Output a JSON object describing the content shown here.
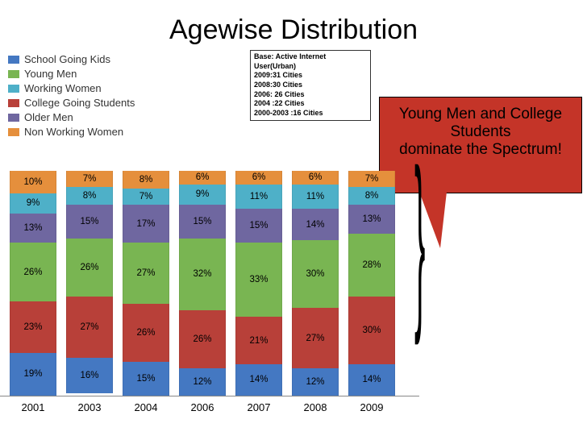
{
  "title": "Agewise Distribution",
  "legend": [
    {
      "label": "School Going Kids",
      "color": "#4478c2"
    },
    {
      "label": "Young Men",
      "color": "#79b552"
    },
    {
      "label": "Working Women",
      "color": "#4eb0c8"
    },
    {
      "label": "College Going Students",
      "color": "#b84039"
    },
    {
      "label": "Older Men",
      "color": "#6f67a0"
    },
    {
      "label": "Non Working Women",
      "color": "#e58f3c"
    }
  ],
  "base_box": [
    "Base: Active Internet User(Urban)",
    "2009:31 Cities",
    "2008:30 Cities",
    "2006: 26 Cities",
    "2004 :22 Cities",
    "2000-2003 :16 Cities"
  ],
  "callout": {
    "line1": "Young Men and College",
    "line2": "Students",
    "line3": "dominate the Spectrum!",
    "bg_color": "#c43428",
    "text_color": "#000000"
  },
  "chart": {
    "type": "stacked-bar-100",
    "years": [
      "2001",
      "2003",
      "2004",
      "2006",
      "2007",
      "2008",
      "2009"
    ],
    "stack_order_top_to_bottom": [
      "non_working_women",
      "working_women",
      "older_men",
      "young_men",
      "college_students",
      "school_kids"
    ],
    "colors": {
      "non_working_women": "#e58f3c",
      "working_women": "#4eb0c8",
      "older_men": "#6f67a0",
      "young_men": "#79b552",
      "college_students": "#b84039",
      "school_kids": "#4478c2"
    },
    "data": {
      "2001": {
        "non_working_women": 10,
        "working_women": 9,
        "older_men": 13,
        "young_men": 26,
        "college_students": 23,
        "school_kids": 19
      },
      "2003": {
        "non_working_women": 7,
        "working_women": 8,
        "older_men": 15,
        "young_men": 26,
        "college_students": 27,
        "school_kids": 16
      },
      "2004": {
        "non_working_women": 8,
        "working_women": 7,
        "older_men": 17,
        "young_men": 27,
        "college_students": 26,
        "school_kids": 15
      },
      "2006": {
        "non_working_women": 6,
        "working_women": 9,
        "older_men": 15,
        "young_men": 32,
        "college_students": 26,
        "school_kids": 12
      },
      "2007": {
        "non_working_women": 6,
        "working_women": 11,
        "older_men": 15,
        "young_men": 33,
        "college_students": 21,
        "school_kids": 14
      },
      "2008": {
        "non_working_women": 6,
        "working_women": 11,
        "older_men": 14,
        "young_men": 30,
        "college_students": 27,
        "school_kids": 12
      },
      "2009": {
        "non_working_women": 7,
        "working_women": 8,
        "older_men": 13,
        "young_men": 28,
        "college_students": 30,
        "school_kids": 14
      }
    },
    "label_fontsize": 11.5,
    "axis_fontsize": 13,
    "background_color": "#ffffff"
  }
}
